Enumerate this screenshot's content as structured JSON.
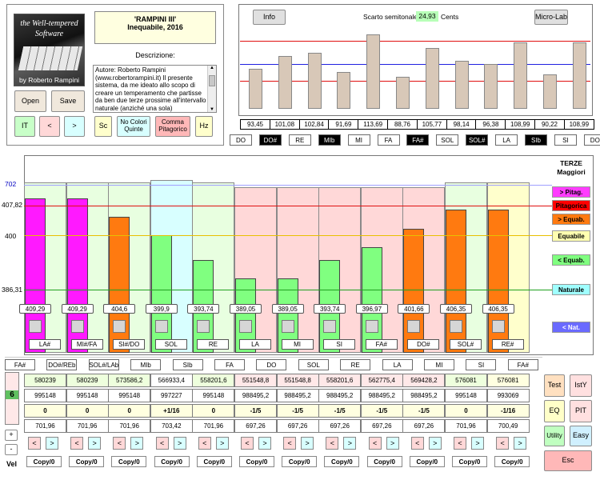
{
  "logo": {
    "line1": "the Well-tempered",
    "line2": "Software",
    "author": "by Roberto Rampini"
  },
  "title": {
    "name": "'RAMPINI III'",
    "sub": "Inequabile, 2016"
  },
  "description": {
    "label": "Descrizione:",
    "text": "Autore: Roberto Rampini (www.robertorampini.it) Il presente sistema, da me ideato allo scopo di creare un temperamento che partisse da ben due terze prossime all'intervallo naturale (anziché una sola)"
  },
  "buttons": {
    "open": "Open",
    "save": "Save",
    "it": "IT",
    "prev": "<",
    "next": ">",
    "sc": "Sc",
    "no_colori": "No Colori Quinte",
    "comma": "Comma Pitagorico",
    "hz": "Hz",
    "info": "Info",
    "microlab": "Micro-Lab"
  },
  "scarto": {
    "label": "Scarto semitonale:",
    "value": "24,93",
    "unit": "Cents"
  },
  "top_chart": {
    "values": [
      93.45,
      101.08,
      102.84,
      91.69,
      113.69,
      88.76,
      105.77,
      98.14,
      96.38,
      108.99,
      90.22,
      108.99
    ],
    "labels": [
      "93,45",
      "101,08",
      "102,84",
      "91,69",
      "113,69",
      "88,76",
      "105,77",
      "98,14",
      "96,38",
      "108,99",
      "90,22",
      "108,99"
    ],
    "notes": [
      "DO",
      "DO#",
      "RE",
      "MIb",
      "MI",
      "FA",
      "FA#",
      "SOL",
      "SOL#",
      "LA",
      "SIb",
      "SI",
      "DO"
    ],
    "dark_notes": [
      1,
      3,
      6,
      8,
      10
    ]
  },
  "axis": {
    "a702": "702",
    "a40782": "407,82",
    "a400": "400",
    "a38631": "386,31"
  },
  "chart_data": {
    "type": "bar",
    "categories": [
      "LA#",
      "MI#/FA",
      "SI#/DO",
      "SOL",
      "RE",
      "LA",
      "MI",
      "SI",
      "FA#",
      "DO#",
      "SOL#",
      "RE#"
    ],
    "values": [
      409.29,
      409.29,
      404.6,
      399.9,
      393.74,
      389.05,
      389.05,
      393.74,
      396.97,
      401.66,
      406.35,
      406.35
    ],
    "value_labels": [
      "409,29",
      "409,29",
      "404,6",
      "399,9",
      "393,74",
      "389,05",
      "389,05",
      "393,74",
      "396,97",
      "401,66",
      "406,35",
      "406,35"
    ],
    "bar_colors": [
      "#ff19ff",
      "#ff19ff",
      "#ff7a10",
      "#80ff80",
      "#80ff80",
      "#80ff80",
      "#80ff80",
      "#80ff80",
      "#80ff80",
      "#ff7a10",
      "#ff7a10",
      "#ff7a10"
    ],
    "bg_colors": [
      "#e8ffe0",
      "#e8ffe0",
      "#e8ffe0",
      "#d8ffff",
      "#e8ffe0",
      "#ffd8d8",
      "#ffd8d8",
      "#ffd8d8",
      "#ffd8d8",
      "#ffd8d8",
      "#e8ffe0",
      "#ffffcc"
    ],
    "ylim": [
      380,
      412
    ]
  },
  "legend": {
    "title": "TERZE Maggiori",
    "items": [
      {
        "label": "> Pitag.",
        "color": "#ff3cff",
        "fg": "#000"
      },
      {
        "label": "Pitagorica",
        "color": "#ff0000",
        "fg": "#000"
      },
      {
        "label": "> Equab.",
        "color": "#ff7a10",
        "fg": "#000"
      },
      {
        "label": "Equabile",
        "color": "#ffffb0",
        "fg": "#000"
      },
      {
        "label": "< Equab.",
        "color": "#80ff80",
        "fg": "#000"
      },
      {
        "label": "Naturale",
        "color": "#a0ffff",
        "fg": "#000"
      },
      {
        "label": "< Nat.",
        "color": "#6a6aff",
        "fg": "#fff"
      }
    ]
  },
  "fifth_notes": [
    "FA#",
    "DO#/REb",
    "SOL#/LAb",
    "MIb",
    "SIb",
    "FA",
    "DO",
    "SOL",
    "RE",
    "LA",
    "MI",
    "SI",
    "FA#"
  ],
  "rows": {
    "r1": [
      "580239",
      "580239",
      "573586,2",
      "566933,4",
      "558201,6",
      "551548,8",
      "551548,8",
      "558201,6",
      "562775,4",
      "569428,2",
      "576081",
      "576081"
    ],
    "r2": [
      "995148",
      "995148",
      "995148",
      "997227",
      "995148",
      "988495,2",
      "988495,2",
      "988495,2",
      "988495,2",
      "988495,2",
      "995148",
      "993069"
    ],
    "r3": [
      "0",
      "0",
      "0",
      "+1/16",
      "0",
      "-1/5",
      "-1/5",
      "-1/5",
      "-1/5",
      "-1/5",
      "0",
      "-1/16"
    ],
    "r4": [
      "701,96",
      "701,96",
      "701,96",
      "703,42",
      "701,96",
      "697,26",
      "697,26",
      "697,26",
      "697,26",
      "697,26",
      "701,96",
      "700,49"
    ]
  },
  "left_panel": {
    "six": "6",
    "plus": "+",
    "minus": "-",
    "vel": "Vel"
  },
  "copy_label": "Copy/0",
  "right_buttons": {
    "test": "Test",
    "isty": "IstY",
    "eq": "EQ",
    "pit": "PIT",
    "utility": "Utility",
    "easy": "Easy",
    "esc": "Esc"
  }
}
